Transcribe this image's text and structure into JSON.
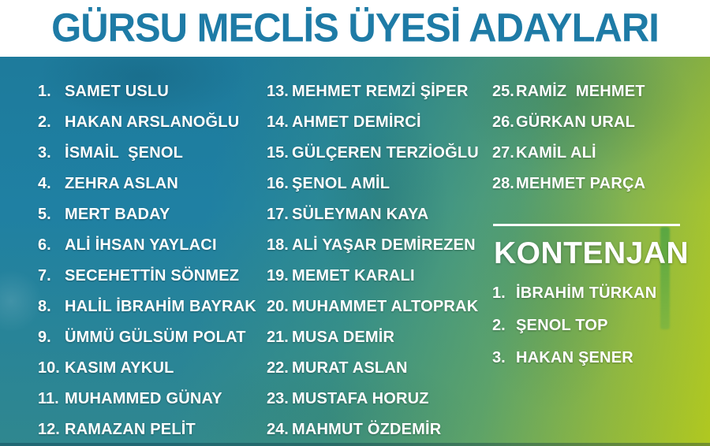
{
  "header": {
    "title": "GÜRSU MECLİS ÜYESİ ADAYLARI"
  },
  "candidates": {
    "column1": [
      {
        "num": "1.",
        "name": "SAMET USLU"
      },
      {
        "num": "2.",
        "name": "HAKAN ARSLANOĞLU"
      },
      {
        "num": "3.",
        "name": "İSMAİL  ŞENOL"
      },
      {
        "num": "4.",
        "name": "ZEHRA ASLAN"
      },
      {
        "num": "5.",
        "name": "MERT BADAY"
      },
      {
        "num": "6.",
        "name": "ALİ İHSAN YAYLACI"
      },
      {
        "num": "7.",
        "name": "SECEHETTİN SÖNMEZ"
      },
      {
        "num": "8.",
        "name": "HALİL İBRAHİM BAYRAK"
      },
      {
        "num": "9.",
        "name": "ÜMMÜ GÜLSÜM POLAT"
      },
      {
        "num": "10.",
        "name": "KASIM AYKUL"
      },
      {
        "num": "11.",
        "name": "MUHAMMED GÜNAY"
      },
      {
        "num": "12.",
        "name": "RAMAZAN PELİT"
      }
    ],
    "column2": [
      {
        "num": "13.",
        "name": "MEHMET REMZİ ŞİPER"
      },
      {
        "num": "14.",
        "name": "AHMET DEMİRCİ"
      },
      {
        "num": "15.",
        "name": "GÜLÇEREN TERZİOĞLU"
      },
      {
        "num": "16.",
        "name": "ŞENOL AMİL"
      },
      {
        "num": "17.",
        "name": "SÜLEYMAN KAYA"
      },
      {
        "num": "18.",
        "name": "ALİ YAŞAR DEMİREZEN"
      },
      {
        "num": "19.",
        "name": "MEMET KARALI"
      },
      {
        "num": "20.",
        "name": "MUHAMMET ALTOPRAK"
      },
      {
        "num": "21.",
        "name": "MUSA DEMİR"
      },
      {
        "num": "22.",
        "name": "MURAT ASLAN"
      },
      {
        "num": "23.",
        "name": "MUSTAFA HORUZ"
      },
      {
        "num": "24.",
        "name": "MAHMUT ÖZDEMİR"
      }
    ],
    "column3": [
      {
        "num": "25.",
        "name": "RAMİZ  MEHMET"
      },
      {
        "num": "26.",
        "name": "GÜRKAN URAL"
      },
      {
        "num": "27.",
        "name": "KAMİL ALİ"
      },
      {
        "num": "28.",
        "name": "MEHMET PARÇA"
      }
    ]
  },
  "kontenjan": {
    "title": "KONTENJAN",
    "items": [
      {
        "num": "1.",
        "name": "İBRAHİM TÜRKAN"
      },
      {
        "num": "2.",
        "name": "ŞENOL TOP"
      },
      {
        "num": "3.",
        "name": "HAKAN ŞENER"
      }
    ]
  },
  "colors": {
    "header_text": "#1e7ba6",
    "list_text": "#ffffff",
    "bg_teal": "#1f80a3",
    "bg_lime": "#b4cb22"
  }
}
